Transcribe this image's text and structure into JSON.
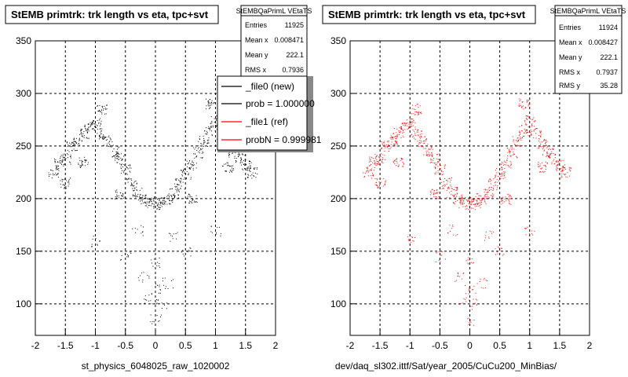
{
  "chart_data": [
    {
      "type": "scatter",
      "title": "StEMB primtrk: trk length vs eta, tpc+svt",
      "xlabel": "st_physics_6048025_raw_1020002",
      "ylabel": "",
      "xlim": [
        -2,
        2
      ],
      "ylim": [
        70,
        350
      ],
      "x_ticks": [
        "-2",
        "-1.5",
        "-1",
        "-0.5",
        "0",
        "0.5",
        "1",
        "1.5",
        "2"
      ],
      "y_ticks": [
        "100",
        "150",
        "200",
        "250",
        "300",
        "350"
      ],
      "grid": true,
      "marker_color": "#000000",
      "stats": {
        "name": "StEMBQaPrimL VEtaTS",
        "rows": [
          {
            "label": "Entries",
            "value": "11925"
          },
          {
            "label": "Mean x",
            "value": "0.008471"
          },
          {
            "label": "Mean y",
            "value": "222.1"
          },
          {
            "label": "RMS x",
            "value": "0.7936"
          }
        ]
      },
      "legend": {
        "placement": "top-right",
        "entries": [
          {
            "label": "_file0 (new)",
            "color": "#000000"
          },
          {
            "label": "prob = 1.000000",
            "color": "#000000"
          },
          {
            "label": "_file1 (ref)",
            "color": "#ff0000"
          },
          {
            "label": "probN = 0.999981",
            "color": "#ff0000"
          }
        ]
      },
      "series": [
        {
          "color": "#000000",
          "points": [
            [
              -1.7,
              225
            ],
            [
              -1.6,
              235
            ],
            [
              -1.5,
              238
            ],
            [
              -1.4,
              250
            ],
            [
              -1.3,
              255
            ],
            [
              -1.2,
              262
            ],
            [
              -1.1,
              268
            ],
            [
              -1.0,
              272
            ],
            [
              -0.9,
              262
            ],
            [
              -0.8,
              255
            ],
            [
              -0.7,
              245
            ],
            [
              -0.6,
              238
            ],
            [
              -0.5,
              228
            ],
            [
              -0.4,
              215
            ],
            [
              -0.3,
              206
            ],
            [
              -0.2,
              200
            ],
            [
              -0.1,
              197
            ],
            [
              0.0,
              195
            ],
            [
              0.1,
              197
            ],
            [
              0.2,
              200
            ],
            [
              0.3,
              206
            ],
            [
              0.4,
              214
            ],
            [
              0.5,
              224
            ],
            [
              0.6,
              232
            ],
            [
              0.7,
              244
            ],
            [
              0.8,
              255
            ],
            [
              0.9,
              265
            ],
            [
              1.0,
              274
            ],
            [
              1.1,
              262
            ],
            [
              1.2,
              252
            ],
            [
              1.3,
              245
            ],
            [
              1.4,
              238
            ],
            [
              1.5,
              232
            ],
            [
              1.6,
              225
            ],
            [
              -1.5,
              215
            ],
            [
              -1.2,
              235
            ],
            [
              -0.9,
              285
            ],
            [
              -0.6,
              205
            ],
            [
              -0.3,
              170
            ],
            [
              0.0,
              140
            ],
            [
              0.3,
              165
            ],
            [
              0.6,
              200
            ],
            [
              0.9,
              290
            ],
            [
              1.2,
              230
            ],
            [
              -1.0,
              160
            ],
            [
              -0.5,
              145
            ],
            [
              0.0,
              115
            ],
            [
              0.5,
              150
            ],
            [
              1.0,
              170
            ],
            [
              -0.2,
              125
            ],
            [
              0.2,
              120
            ],
            [
              -0.1,
              105
            ],
            [
              0.1,
              100
            ],
            [
              0.0,
              85
            ]
          ]
        }
      ]
    },
    {
      "type": "scatter",
      "title": "StEMB primtrk: trk length vs eta, tpc+svt",
      "xlabel": "dev/daq_sl302.ittf/Sat/year_2005/CuCu200_MinBias/",
      "ylabel": "",
      "xlim": [
        -2,
        2
      ],
      "ylim": [
        70,
        350
      ],
      "x_ticks": [
        "-2",
        "-1.5",
        "-1",
        "-0.5",
        "0",
        "0.5",
        "1",
        "1.5",
        "2"
      ],
      "y_ticks": [
        "100",
        "150",
        "200",
        "250",
        "300",
        "350"
      ],
      "grid": true,
      "marker_color": "#ff0000",
      "stats": {
        "name": "StEMBQaPrimL VEtaTS",
        "rows": [
          {
            "label": "Entries",
            "value": "11924"
          },
          {
            "label": "Mean x",
            "value": "0.008427"
          },
          {
            "label": "Mean y",
            "value": "222.1"
          },
          {
            "label": "RMS x",
            "value": "0.7937"
          },
          {
            "label": "RMS y",
            "value": "35.28"
          }
        ]
      },
      "series": [
        {
          "color": "#ff0000",
          "points": [
            [
              -1.7,
              225
            ],
            [
              -1.6,
              235
            ],
            [
              -1.5,
              238
            ],
            [
              -1.4,
              250
            ],
            [
              -1.3,
              255
            ],
            [
              -1.2,
              262
            ],
            [
              -1.1,
              268
            ],
            [
              -1.0,
              272
            ],
            [
              -0.9,
              262
            ],
            [
              -0.8,
              255
            ],
            [
              -0.7,
              245
            ],
            [
              -0.6,
              238
            ],
            [
              -0.5,
              228
            ],
            [
              -0.4,
              215
            ],
            [
              -0.3,
              206
            ],
            [
              -0.2,
              200
            ],
            [
              -0.1,
              197
            ],
            [
              0.0,
              195
            ],
            [
              0.1,
              197
            ],
            [
              0.2,
              200
            ],
            [
              0.3,
              206
            ],
            [
              0.4,
              214
            ],
            [
              0.5,
              224
            ],
            [
              0.6,
              232
            ],
            [
              0.7,
              244
            ],
            [
              0.8,
              255
            ],
            [
              0.9,
              265
            ],
            [
              1.0,
              274
            ],
            [
              1.1,
              262
            ],
            [
              1.2,
              252
            ],
            [
              1.3,
              245
            ],
            [
              1.4,
              238
            ],
            [
              1.5,
              232
            ],
            [
              1.6,
              225
            ],
            [
              -1.5,
              215
            ],
            [
              -1.2,
              235
            ],
            [
              -0.9,
              285
            ],
            [
              -0.6,
              205
            ],
            [
              -0.3,
              170
            ],
            [
              0.0,
              140
            ],
            [
              0.3,
              165
            ],
            [
              0.6,
              200
            ],
            [
              0.9,
              290
            ],
            [
              1.2,
              230
            ],
            [
              -1.0,
              160
            ],
            [
              -0.5,
              145
            ],
            [
              0.0,
              115
            ],
            [
              0.5,
              150
            ],
            [
              1.0,
              170
            ],
            [
              -0.2,
              125
            ],
            [
              0.2,
              120
            ],
            [
              -0.1,
              105
            ],
            [
              0.1,
              100
            ],
            [
              0.0,
              85
            ]
          ]
        }
      ]
    }
  ]
}
